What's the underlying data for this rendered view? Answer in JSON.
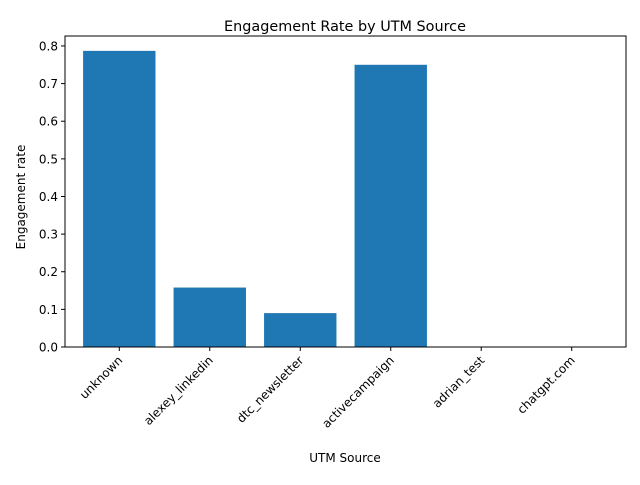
{
  "chart_data": {
    "type": "bar",
    "title": "Engagement Rate by UTM Source",
    "xlabel": "UTM Source",
    "ylabel": "Engagement rate",
    "categories": [
      "unknown",
      "alexey_linkedin",
      "dtc_newsletter",
      "activecampaign",
      "adrian_test",
      "chatgpt.com"
    ],
    "values": [
      0.787,
      0.158,
      0.09,
      0.75,
      0.0,
      0.0
    ],
    "ylim": [
      0,
      0.8265
    ],
    "yticks": [
      "0.0",
      "0.1",
      "0.2",
      "0.3",
      "0.4",
      "0.5",
      "0.6",
      "0.7",
      "0.8"
    ],
    "grid": false,
    "bar_color": "#1f77b4"
  }
}
